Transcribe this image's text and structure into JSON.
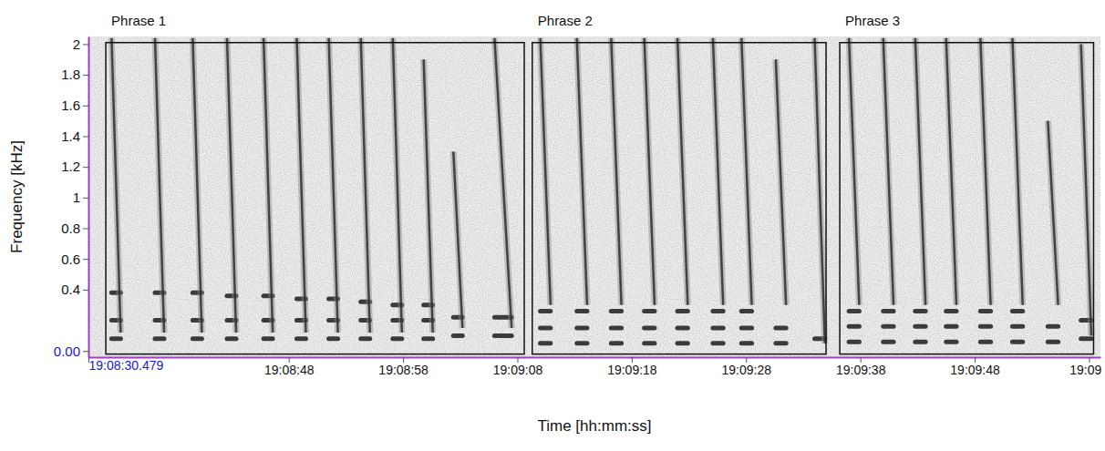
{
  "chart_data": {
    "type": "spectrogram",
    "x_label": "Time [hh:mm:ss]",
    "y_label": "Frequency [kHz]",
    "xlim": [
      "19:08:30.479",
      "19:09:59"
    ],
    "xticks": [
      "19:08:30.479",
      "19:08:48",
      "19:08:58",
      "19:09:08",
      "19:09:18",
      "19:09:28",
      "19:09:38",
      "19:09:48",
      {
        "value": "19:09:58",
        "label": "19:09"
      }
    ],
    "ylim": [
      -0.04,
      2.05
    ],
    "yticks": [
      {
        "value": 0,
        "label": "0.00"
      },
      0.4,
      0.6,
      0.8,
      1,
      1.2,
      1.4,
      1.6,
      1.8,
      2
    ],
    "phrases": [
      {
        "label": "Phrase 1",
        "start": "19:08:32.0",
        "end": "19:09:08.6",
        "f_low": -0.02,
        "f_high": 2.01
      },
      {
        "label": "Phrase 2",
        "start": "19:09:09.3",
        "end": "19:09:35.0",
        "f_low": -0.02,
        "f_high": 2.01
      },
      {
        "label": "Phrase 3",
        "start": "19:09:36.2",
        "end": "19:09:58.4",
        "f_low": -0.02,
        "f_high": 2.01
      }
    ],
    "units": [
      {
        "start": "19:08:32.5",
        "end": "19:08:33.3",
        "f_top": 2.04,
        "f_bottom": 0.12,
        "harmonics": [
          0.08,
          0.2,
          0.38
        ]
      },
      {
        "start": "19:08:36.3",
        "end": "19:08:37.1",
        "f_top": 2.04,
        "f_bottom": 0.12,
        "harmonics": [
          0.08,
          0.2,
          0.38
        ]
      },
      {
        "start": "19:08:39.6",
        "end": "19:08:40.4",
        "f_top": 2.04,
        "f_bottom": 0.12,
        "harmonics": [
          0.08,
          0.2,
          0.38
        ]
      },
      {
        "start": "19:08:42.6",
        "end": "19:08:43.4",
        "f_top": 2.04,
        "f_bottom": 0.12,
        "harmonics": [
          0.08,
          0.2,
          0.36
        ]
      },
      {
        "start": "19:08:45.8",
        "end": "19:08:46.6",
        "f_top": 2.04,
        "f_bottom": 0.12,
        "harmonics": [
          0.08,
          0.2,
          0.36
        ]
      },
      {
        "start": "19:08:48.7",
        "end": "19:08:49.5",
        "f_top": 2.04,
        "f_bottom": 0.12,
        "harmonics": [
          0.08,
          0.2,
          0.34
        ]
      },
      {
        "start": "19:08:51.5",
        "end": "19:08:52.3",
        "f_top": 2.04,
        "f_bottom": 0.12,
        "harmonics": [
          0.08,
          0.2,
          0.34
        ]
      },
      {
        "start": "19:08:54.3",
        "end": "19:08:55.1",
        "f_top": 2.04,
        "f_bottom": 0.12,
        "harmonics": [
          0.08,
          0.2,
          0.32
        ]
      },
      {
        "start": "19:08:57.1",
        "end": "19:08:57.9",
        "f_top": 2.04,
        "f_bottom": 0.12,
        "harmonics": [
          0.08,
          0.2,
          0.3
        ]
      },
      {
        "start": "19:08:59.8",
        "end": "19:09:00.6",
        "f_top": 1.9,
        "f_bottom": 0.12,
        "harmonics": [
          0.08,
          0.2,
          0.3
        ]
      },
      {
        "start": "19:09:02.4",
        "end": "19:09:03.2",
        "f_top": 1.3,
        "f_bottom": 0.15,
        "harmonics": [
          0.1,
          0.22
        ]
      },
      {
        "start": "19:09:06.0",
        "end": "19:09:07.5",
        "f_top": 2.04,
        "f_bottom": 0.15,
        "harmonics": [
          0.1,
          0.22
        ]
      },
      {
        "start": "19:09:10.0",
        "end": "19:09:10.9",
        "f_top": 2.04,
        "f_bottom": 0.3,
        "harmonics": [
          0.05,
          0.15,
          0.26
        ]
      },
      {
        "start": "19:09:13.2",
        "end": "19:09:14.1",
        "f_top": 2.04,
        "f_bottom": 0.3,
        "harmonics": [
          0.05,
          0.15,
          0.26
        ]
      },
      {
        "start": "19:09:16.2",
        "end": "19:09:17.1",
        "f_top": 2.04,
        "f_bottom": 0.3,
        "harmonics": [
          0.05,
          0.15,
          0.26
        ]
      },
      {
        "start": "19:09:19.1",
        "end": "19:09:20.0",
        "f_top": 2.04,
        "f_bottom": 0.3,
        "harmonics": [
          0.05,
          0.15,
          0.26
        ]
      },
      {
        "start": "19:09:22.0",
        "end": "19:09:22.9",
        "f_top": 2.04,
        "f_bottom": 0.3,
        "harmonics": [
          0.05,
          0.15,
          0.26
        ]
      },
      {
        "start": "19:09:25.1",
        "end": "19:09:26.0",
        "f_top": 2.04,
        "f_bottom": 0.3,
        "harmonics": [
          0.05,
          0.15,
          0.26
        ]
      },
      {
        "start": "19:09:27.6",
        "end": "19:09:28.5",
        "f_top": 2.04,
        "f_bottom": 0.3,
        "harmonics": [
          0.05,
          0.15,
          0.26
        ]
      },
      {
        "start": "19:09:30.6",
        "end": "19:09:31.5",
        "f_top": 1.9,
        "f_bottom": 0.3,
        "harmonics": [
          0.05,
          0.15
        ]
      },
      {
        "start": "19:09:34.0",
        "end": "19:09:34.9",
        "f_top": 2.04,
        "f_bottom": 0.05,
        "harmonics": [
          0.08
        ]
      },
      {
        "start": "19:09:37.0",
        "end": "19:09:37.9",
        "f_top": 2.04,
        "f_bottom": 0.3,
        "harmonics": [
          0.06,
          0.16,
          0.26
        ]
      },
      {
        "start": "19:09:40.0",
        "end": "19:09:40.9",
        "f_top": 2.04,
        "f_bottom": 0.3,
        "harmonics": [
          0.06,
          0.16,
          0.26
        ]
      },
      {
        "start": "19:09:42.8",
        "end": "19:09:43.7",
        "f_top": 2.04,
        "f_bottom": 0.3,
        "harmonics": [
          0.06,
          0.16,
          0.26
        ]
      },
      {
        "start": "19:09:45.5",
        "end": "19:09:46.4",
        "f_top": 2.04,
        "f_bottom": 0.3,
        "harmonics": [
          0.06,
          0.16,
          0.26
        ]
      },
      {
        "start": "19:09:48.5",
        "end": "19:09:49.4",
        "f_top": 2.04,
        "f_bottom": 0.3,
        "harmonics": [
          0.06,
          0.16,
          0.26
        ]
      },
      {
        "start": "19:09:51.3",
        "end": "19:09:52.2",
        "f_top": 2.04,
        "f_bottom": 0.3,
        "harmonics": [
          0.06,
          0.16,
          0.26
        ]
      },
      {
        "start": "19:09:54.4",
        "end": "19:09:55.3",
        "f_top": 1.5,
        "f_bottom": 0.3,
        "harmonics": [
          0.06,
          0.16
        ]
      },
      {
        "start": "19:09:57.3",
        "end": "19:09:58.2",
        "f_top": 2.0,
        "f_bottom": 0.1,
        "harmonics": [
          0.08,
          0.2
        ]
      }
    ]
  }
}
